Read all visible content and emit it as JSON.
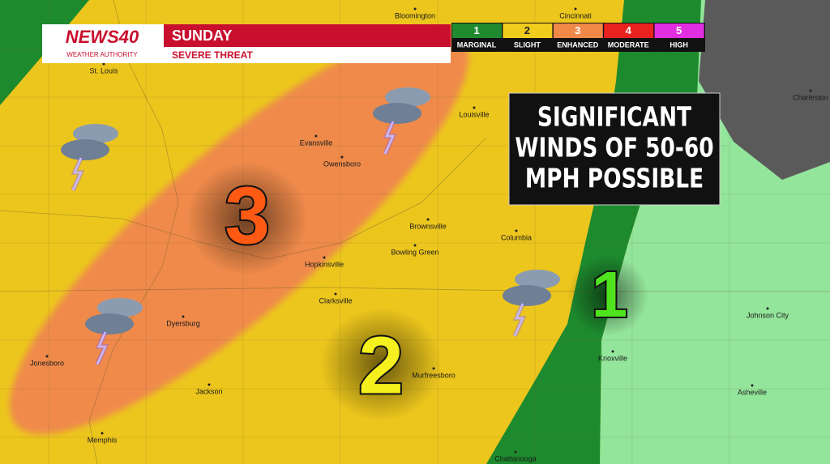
{
  "header": {
    "logo": "NEWS40",
    "tagline": "WEATHER AUTHORITY",
    "day": "SUNDAY",
    "subtitle": "SEVERE THREAT"
  },
  "legend": [
    {
      "level": "1",
      "label": "MARGINAL",
      "color": "#1f8a2f"
    },
    {
      "level": "2",
      "label": "SLIGHT",
      "color": "#f0cc1c"
    },
    {
      "level": "3",
      "label": "ENHANCED",
      "color": "#f08848"
    },
    {
      "level": "4",
      "label": "MODERATE",
      "color": "#e8231f"
    },
    {
      "level": "5",
      "label": "HIGH",
      "color": "#e12ee0"
    }
  ],
  "risk_labels": [
    {
      "text": "3",
      "color": "#ff5a14"
    },
    {
      "text": "2",
      "color": "#f6f01e"
    },
    {
      "text": "1",
      "color": "#4fe31e"
    }
  ],
  "callout": {
    "lines": [
      "SIGNIFICANT",
      "WINDS OF 50-60",
      "MPH POSSIBLE"
    ]
  },
  "cities": [
    "Bloomington",
    "Cincinnati",
    "St. Louis",
    "Louisville",
    "Charleston",
    "Evansville",
    "Owensboro",
    "Brownsville",
    "Columbia",
    "Hopkinsville",
    "Bowling Green",
    "Clarksville",
    "Dyersburg",
    "Jonesboro",
    "Murfreesboro",
    "Jackson",
    "Knoxville",
    "Johnson City",
    "Asheville",
    "Memphis",
    "Chattanooga"
  ]
}
